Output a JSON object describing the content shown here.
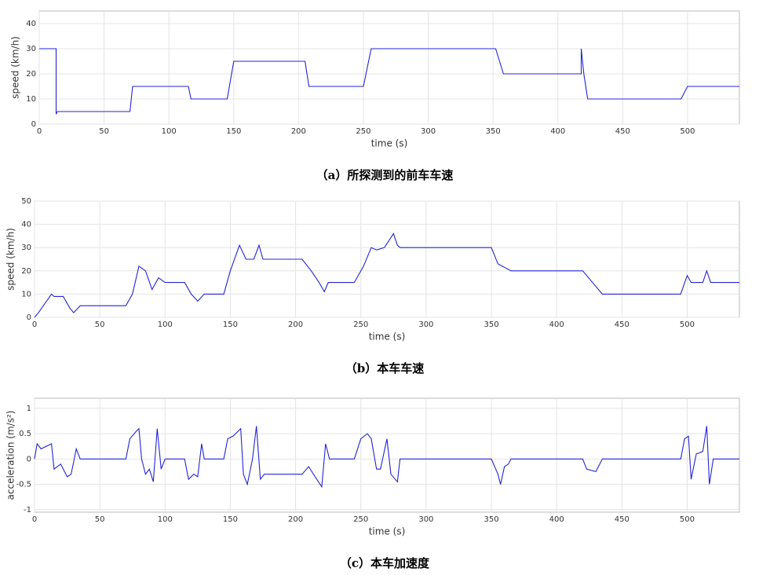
{
  "chart_data": [
    {
      "type": "line",
      "title": "（a）所探测到的前车车速",
      "xlabel": "time (s)",
      "ylabel": "speed (km/h)",
      "color": "#2424d8",
      "grid": true,
      "xlim": [
        0,
        540
      ],
      "xticks": [
        0,
        50,
        100,
        150,
        200,
        250,
        300,
        350,
        400,
        450,
        500
      ],
      "ylim": [
        0,
        45
      ],
      "yticks": [
        0,
        10,
        20,
        30,
        40
      ],
      "x": [
        0,
        13,
        13,
        14,
        30,
        70,
        72,
        80,
        95,
        115,
        117,
        130,
        145,
        150,
        160,
        175,
        205,
        208,
        220,
        230,
        250,
        256,
        265,
        280,
        352,
        358,
        365,
        418,
        418,
        420,
        423,
        430,
        495,
        500,
        510,
        540
      ],
      "values": [
        30,
        30,
        4,
        5,
        5,
        5,
        15,
        15,
        15,
        15,
        10,
        10,
        10,
        25,
        25,
        25,
        25,
        15,
        15,
        15,
        15,
        30,
        30,
        30,
        30,
        20,
        20,
        20,
        30,
        20,
        10,
        10,
        10,
        15,
        15,
        15
      ]
    },
    {
      "type": "line",
      "title": "（b）本车车速",
      "xlabel": "time (s)",
      "ylabel": "speed (km/h)",
      "color": "#2424d8",
      "grid": true,
      "xlim": [
        0,
        540
      ],
      "xticks": [
        0,
        50,
        100,
        150,
        200,
        250,
        300,
        350,
        400,
        450,
        500
      ],
      "ylim": [
        0,
        50
      ],
      "yticks": [
        0,
        10,
        20,
        30,
        40,
        50
      ],
      "x": [
        0,
        3,
        13,
        15,
        22,
        27,
        30,
        35,
        70,
        75,
        80,
        85,
        90,
        95,
        100,
        115,
        120,
        125,
        130,
        145,
        150,
        157,
        162,
        168,
        172,
        175,
        205,
        212,
        218,
        222,
        225,
        245,
        252,
        258,
        262,
        268,
        275,
        278,
        280,
        350,
        355,
        365,
        420,
        435,
        495,
        500,
        503,
        512,
        515,
        518,
        540
      ],
      "values": [
        0,
        2,
        10,
        9,
        9,
        4,
        2,
        5,
        5,
        10,
        22,
        20,
        12,
        17,
        15,
        15,
        10,
        7,
        10,
        10,
        20,
        31,
        25,
        25,
        31,
        25,
        25,
        20,
        15,
        11,
        15,
        15,
        22,
        30,
        29,
        30,
        36,
        31,
        30,
        30,
        23,
        20,
        20,
        10,
        10,
        18,
        15,
        15,
        20,
        15,
        15
      ]
    },
    {
      "type": "line",
      "title": "（c）本车加速度",
      "xlabel": "time (s)",
      "ylabel": "acceleration (m/s²)",
      "color": "#2424d8",
      "grid": true,
      "xlim": [
        0,
        540
      ],
      "xticks": [
        0,
        50,
        100,
        150,
        200,
        250,
        300,
        350,
        400,
        450,
        500
      ],
      "ylim": [
        -1.05,
        1.2
      ],
      "yticks": [
        -1,
        -0.5,
        0,
        0.5,
        1
      ],
      "x": [
        0,
        2,
        5,
        13,
        15,
        20,
        25,
        28,
        32,
        35,
        70,
        73,
        78,
        80,
        82,
        85,
        88,
        91,
        94,
        97,
        100,
        115,
        118,
        122,
        125,
        128,
        130,
        145,
        148,
        152,
        156,
        158,
        160,
        163,
        167,
        170,
        173,
        176,
        205,
        210,
        215,
        220,
        223,
        226,
        245,
        250,
        255,
        258,
        262,
        265,
        270,
        273,
        278,
        280,
        350,
        355,
        357,
        360,
        363,
        365,
        420,
        423,
        430,
        435,
        495,
        498,
        501,
        503,
        507,
        512,
        515,
        517,
        520,
        540
      ],
      "values": [
        0,
        0.3,
        0.2,
        0.3,
        -0.2,
        -0.1,
        -0.35,
        -0.3,
        0.2,
        0,
        0,
        0.4,
        0.55,
        0.6,
        0,
        -0.3,
        -0.2,
        -0.45,
        0.6,
        -0.2,
        0,
        0,
        -0.4,
        -0.3,
        -0.35,
        0.3,
        0,
        0,
        0.4,
        0.45,
        0.55,
        0.6,
        -0.3,
        -0.5,
        0,
        0.65,
        -0.4,
        -0.3,
        -0.3,
        -0.15,
        -0.35,
        -0.55,
        0.3,
        0,
        0,
        0.4,
        0.5,
        0.4,
        -0.2,
        -0.2,
        0.4,
        -0.3,
        -0.45,
        0,
        0,
        -0.3,
        -0.5,
        -0.15,
        -0.1,
        0,
        0,
        -0.2,
        -0.25,
        0,
        0,
        0.4,
        0.45,
        -0.4,
        0.1,
        0.15,
        0.65,
        -0.5,
        0,
        0
      ]
    }
  ]
}
